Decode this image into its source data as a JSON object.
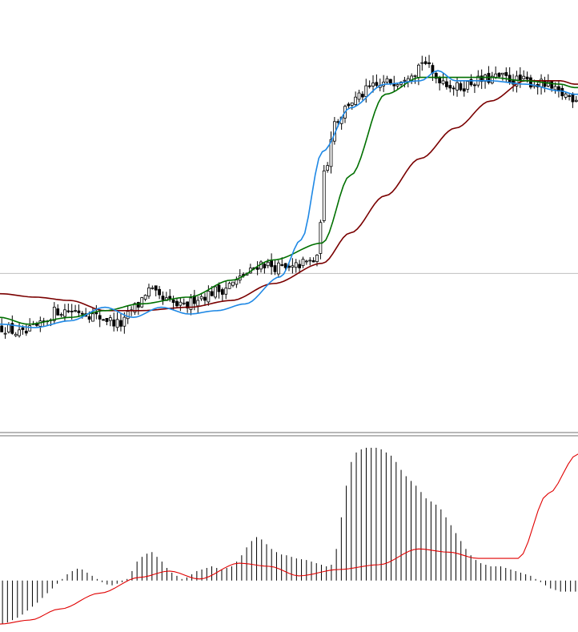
{
  "chart_data": [
    {
      "type": "candlestick",
      "title": "",
      "ylim": [
        0,
        100
      ],
      "colors": {
        "candle": "#000000",
        "ma_fast": "#1e88e5",
        "ma_mid": "#007000",
        "ma_slow": "#7a0000",
        "hline": "#c0c0c0"
      },
      "hline": 21,
      "ma_fast_anchors": [
        [
          0,
          6
        ],
        [
          10,
          5
        ],
        [
          20,
          7
        ],
        [
          30,
          11
        ],
        [
          38,
          8
        ],
        [
          46,
          11
        ],
        [
          54,
          9
        ],
        [
          62,
          10
        ],
        [
          70,
          12
        ],
        [
          80,
          20
        ],
        [
          86,
          31
        ],
        [
          92,
          57
        ],
        [
          100,
          70
        ],
        [
          110,
          77
        ],
        [
          120,
          78
        ],
        [
          125,
          81
        ],
        [
          130,
          78
        ],
        [
          140,
          78
        ],
        [
          150,
          77
        ],
        [
          160,
          75
        ],
        [
          164,
          74
        ]
      ],
      "ma_mid_anchors": [
        [
          0,
          8
        ],
        [
          8,
          6
        ],
        [
          20,
          8
        ],
        [
          30,
          10
        ],
        [
          40,
          12
        ],
        [
          54,
          14
        ],
        [
          66,
          19
        ],
        [
          78,
          25
        ],
        [
          92,
          30
        ],
        [
          100,
          50
        ],
        [
          110,
          74
        ],
        [
          120,
          79
        ],
        [
          130,
          79
        ],
        [
          140,
          79
        ],
        [
          150,
          78
        ],
        [
          160,
          77
        ],
        [
          164,
          76
        ]
      ],
      "ma_slow_anchors": [
        [
          0,
          15
        ],
        [
          10,
          14
        ],
        [
          20,
          13
        ],
        [
          30,
          10
        ],
        [
          40,
          10
        ],
        [
          54,
          11
        ],
        [
          66,
          13
        ],
        [
          78,
          18
        ],
        [
          92,
          24
        ],
        [
          100,
          33
        ],
        [
          110,
          44
        ],
        [
          120,
          55
        ],
        [
          130,
          64
        ],
        [
          140,
          72
        ],
        [
          150,
          78
        ],
        [
          160,
          78
        ],
        [
          164,
          77
        ]
      ],
      "close_anchors": [
        [
          0,
          5
        ],
        [
          6,
          3
        ],
        [
          10,
          5
        ],
        [
          16,
          10
        ],
        [
          22,
          10
        ],
        [
          28,
          8
        ],
        [
          34,
          6
        ],
        [
          38,
          11
        ],
        [
          42,
          16
        ],
        [
          46,
          13
        ],
        [
          52,
          11
        ],
        [
          56,
          14
        ],
        [
          62,
          16
        ],
        [
          66,
          18
        ],
        [
          70,
          21
        ],
        [
          74,
          24
        ],
        [
          78,
          23
        ],
        [
          82,
          22
        ],
        [
          86,
          24
        ],
        [
          90,
          25
        ],
        [
          92,
          50
        ],
        [
          95,
          66
        ],
        [
          100,
          72
        ],
        [
          106,
          76
        ],
        [
          112,
          78
        ],
        [
          118,
          81
        ],
        [
          120,
          84
        ],
        [
          124,
          79
        ],
        [
          130,
          76
        ],
        [
          136,
          78
        ],
        [
          142,
          79
        ],
        [
          148,
          78
        ],
        [
          154,
          77
        ],
        [
          160,
          74
        ],
        [
          164,
          73
        ]
      ]
    },
    {
      "type": "histogram",
      "title": "",
      "colors": {
        "bar": "#000000",
        "signal": "#e00000"
      },
      "ylim": [
        -60,
        170
      ],
      "bars": [
        -55,
        -53,
        -50,
        -47,
        -43,
        -38,
        -33,
        -28,
        -22,
        -16,
        -10,
        -4,
        2,
        8,
        12,
        15,
        14,
        10,
        6,
        2,
        -2,
        -5,
        -6,
        -4,
        -2,
        2,
        12,
        24,
        30,
        34,
        36,
        30,
        24,
        16,
        10,
        6,
        2,
        4,
        8,
        12,
        14,
        16,
        18,
        16,
        14,
        16,
        18,
        24,
        32,
        42,
        50,
        55,
        52,
        46,
        40,
        36,
        33,
        32,
        30,
        28,
        27,
        26,
        24,
        22,
        20,
        18,
        20,
        40,
        80,
        120,
        150,
        162,
        166,
        168,
        168,
        168,
        166,
        162,
        158,
        150,
        140,
        132,
        126,
        120,
        112,
        104,
        100,
        96,
        90,
        80,
        70,
        60,
        50,
        40,
        32,
        26,
        22,
        20,
        18,
        18,
        18,
        16,
        14,
        12,
        10,
        8,
        6,
        2,
        -2,
        -6,
        -10,
        -12,
        -14,
        -14,
        -14,
        -14
      ],
      "signal_anchors": [
        [
          0,
          -55
        ],
        [
          6,
          -50
        ],
        [
          12,
          -36
        ],
        [
          20,
          -16
        ],
        [
          28,
          4
        ],
        [
          34,
          12
        ],
        [
          40,
          2
        ],
        [
          48,
          22
        ],
        [
          54,
          18
        ],
        [
          60,
          6
        ],
        [
          68,
          14
        ],
        [
          76,
          20
        ],
        [
          84,
          40
        ],
        [
          90,
          36
        ],
        [
          96,
          28
        ],
        [
          104,
          28
        ],
        [
          110,
          110
        ],
        [
          116,
          160
        ],
        [
          122,
          166
        ],
        [
          128,
          156
        ],
        [
          136,
          124
        ],
        [
          146,
          98
        ],
        [
          156,
          40
        ],
        [
          162,
          20
        ],
        [
          168,
          18
        ],
        [
          174,
          16
        ],
        [
          180,
          8
        ],
        [
          188,
          -6
        ],
        [
          196,
          -14
        ]
      ]
    }
  ]
}
